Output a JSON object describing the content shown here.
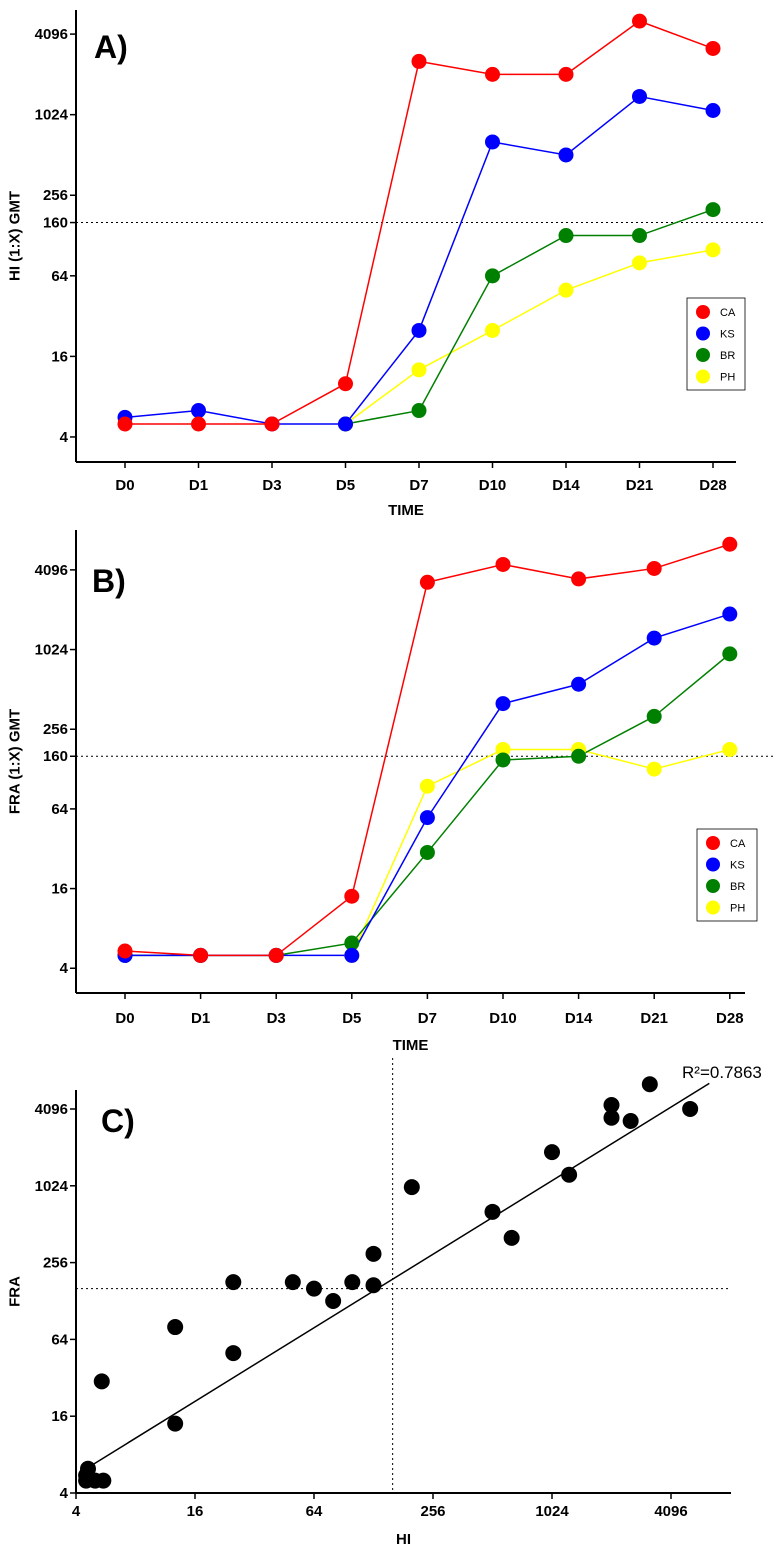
{
  "chart_data": [
    {
      "type": "line",
      "panel": "A)",
      "ylabel": "HI (1:X) GMT",
      "xlabel": "TIME",
      "scale": "log2",
      "ylim": [
        2.6,
        6200
      ],
      "yticks": [
        4,
        16,
        64,
        160,
        256,
        1024,
        4096
      ],
      "reference_line": 160,
      "categories": [
        "D0",
        "D1",
        "D3",
        "D5",
        "D7",
        "D10",
        "D14",
        "D21",
        "D28"
      ],
      "legend_position": "right",
      "series": [
        {
          "name": "CA",
          "color": "#ff0000",
          "values": [
            5,
            5,
            5,
            10,
            2560,
            2048,
            2048,
            5120,
            3200
          ]
        },
        {
          "name": "KS",
          "color": "#0000ff",
          "values": [
            5.6,
            6.3,
            5,
            5,
            25,
            640,
            512,
            1400,
            1100
          ]
        },
        {
          "name": "BR",
          "color": "#008000",
          "values": [
            null,
            null,
            null,
            5,
            6.3,
            64,
            128,
            128,
            200
          ]
        },
        {
          "name": "PH",
          "color": "#ffff00",
          "values": [
            null,
            null,
            null,
            5,
            12.7,
            25,
            50,
            80,
            100
          ]
        }
      ]
    },
    {
      "type": "line",
      "panel": "B)",
      "ylabel": "FRA (1:X) GMT",
      "xlabel": "TIME",
      "scale": "log2",
      "ylim": [
        2.6,
        8200
      ],
      "yticks": [
        4,
        16,
        64,
        160,
        256,
        1024,
        4096
      ],
      "reference_line": 160,
      "categories": [
        "D0",
        "D1",
        "D3",
        "D5",
        "D7",
        "D10",
        "D14",
        "D21",
        "D28"
      ],
      "legend_position": "bottom-right",
      "series": [
        {
          "name": "CA",
          "color": "#ff0000",
          "values": [
            5.4,
            5,
            5,
            14,
            3300,
            4500,
            3500,
            4200,
            6400
          ]
        },
        {
          "name": "KS",
          "color": "#0000ff",
          "values": [
            5,
            5,
            5,
            5,
            55,
            400,
            560,
            1250,
            1900
          ]
        },
        {
          "name": "BR",
          "color": "#008000",
          "values": [
            5,
            5,
            5,
            6.2,
            30,
            150,
            160,
            320,
            950
          ]
        },
        {
          "name": "PH",
          "color": "#ffff00",
          "values": [
            null,
            null,
            null,
            5,
            95,
            180,
            180,
            128,
            180
          ]
        }
      ]
    },
    {
      "type": "scatter",
      "panel": "C)",
      "xlabel": "HI",
      "ylabel": "FRA",
      "scale": "log2",
      "xlim": [
        4,
        8200
      ],
      "ylim": [
        4,
        8200
      ],
      "xticks": [
        4,
        16,
        64,
        256,
        1024,
        4096
      ],
      "yticks": [
        4,
        16,
        64,
        256,
        1024,
        4096
      ],
      "ref_x": 160,
      "ref_y": 160,
      "annotation": "R²=0.7863",
      "regression": [
        [
          4.5,
          6.2
        ],
        [
          6400,
          6500
        ]
      ],
      "points": [
        [
          4.5,
          5
        ],
        [
          4.5,
          5.5
        ],
        [
          5,
          5
        ],
        [
          5.5,
          5
        ],
        [
          5.4,
          30
        ],
        [
          4.6,
          6.2
        ],
        [
          12.7,
          80
        ],
        [
          12.7,
          14
        ],
        [
          25,
          180
        ],
        [
          25,
          50
        ],
        [
          50,
          180
        ],
        [
          64,
          160
        ],
        [
          80,
          128
        ],
        [
          100,
          180
        ],
        [
          128,
          300
        ],
        [
          128,
          170
        ],
        [
          200,
          1000
        ],
        [
          512,
          640
        ],
        [
          640,
          400
        ],
        [
          1024,
          1880
        ],
        [
          1250,
          1250
        ],
        [
          2048,
          3500
        ],
        [
          2048,
          4400
        ],
        [
          2560,
          3300
        ],
        [
          3200,
          6400
        ],
        [
          5120,
          4100
        ]
      ]
    }
  ]
}
